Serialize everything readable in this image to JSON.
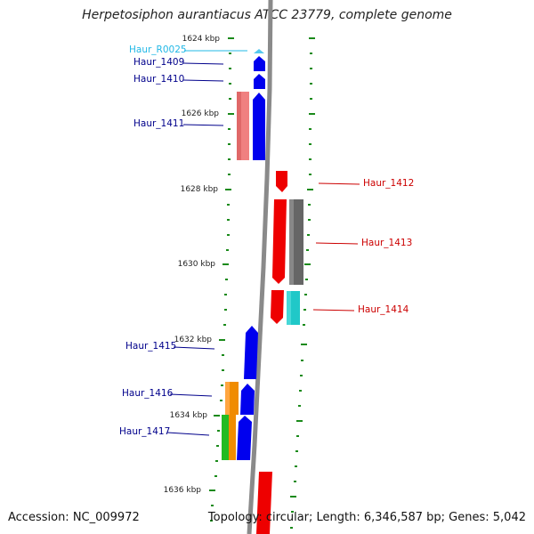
{
  "title": "Herpetosiphon aurantiacus ATCC 23779, complete genome",
  "accession": "Accession: NC_009972",
  "topology": "Topology: circular; Length: 6,346,587 bp; Genes: 5,042",
  "colors": {
    "backbone": "#8a8a8a",
    "tick": "#1a8a1a",
    "forward_gene": "#0000ee",
    "reverse_gene": "#ee0000",
    "forward_label": "#00008b",
    "reverse_label": "#cc0000",
    "rna_label": "#22b8e6",
    "rna_gene": "#55c8ee"
  },
  "scale_labels": [
    "1624 kbp",
    "1626 kbp",
    "1628 kbp",
    "1630 kbp",
    "1632 kbp",
    "1634 kbp",
    "1636 kbp"
  ],
  "labels": [
    {
      "id": "Haur_R0025",
      "text": "Haur_R0025",
      "kind": "rna"
    },
    {
      "id": "Haur_1409",
      "text": "Haur_1409",
      "kind": "forward"
    },
    {
      "id": "Haur_1410",
      "text": "Haur_1410",
      "kind": "forward"
    },
    {
      "id": "Haur_1411",
      "text": "Haur_1411",
      "kind": "forward"
    },
    {
      "id": "Haur_1412",
      "text": "Haur_1412",
      "kind": "reverse"
    },
    {
      "id": "Haur_1413",
      "text": "Haur_1413",
      "kind": "reverse"
    },
    {
      "id": "Haur_1414",
      "text": "Haur_1414",
      "kind": "reverse"
    },
    {
      "id": "Haur_1415",
      "text": "Haur_1415",
      "kind": "forward"
    },
    {
      "id": "Haur_1416",
      "text": "Haur_1416",
      "kind": "forward"
    },
    {
      "id": "Haur_1417",
      "text": "Haur_1417",
      "kind": "forward"
    }
  ]
}
